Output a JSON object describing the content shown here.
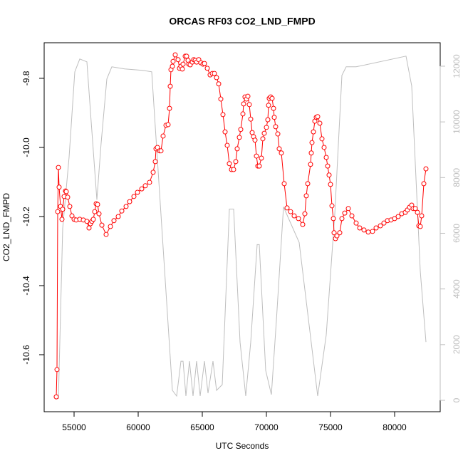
{
  "chart_data": {
    "type": "line",
    "title": "ORCAS RF03 CO2_LND_FMPD",
    "x_label": "UTC Seconds",
    "y_label": "CO2_LND_FMPD",
    "xlim": [
      52667,
      83556
    ],
    "ylim": [
      -10.765,
      -9.697
    ],
    "y2lim": [
      -409,
      12843
    ],
    "xticks": [
      55000,
      60000,
      65000,
      70000,
      75000,
      80000
    ],
    "yticks": [
      -10.6,
      -10.4,
      -10.2,
      {
        "value": -10.0,
        "label": "-10.0"
      },
      -9.8
    ],
    "y2ticks": [
      0,
      2000,
      4000,
      6000,
      8000,
      10000,
      12000
    ],
    "y2_color": "#bebebe",
    "series": [
      {
        "color": "#ff0000",
        "markers": true,
        "x": [
          53611,
          53667,
          53722,
          53778,
          53833,
          53944,
          54055,
          54111,
          54222,
          54333,
          54389,
          54500,
          54667,
          54833,
          55000,
          55167,
          55444,
          55722,
          56000,
          56167,
          56278,
          56389,
          56500,
          56611,
          56722,
          56833,
          56944,
          57167,
          57500,
          57833,
          58111,
          58444,
          58722,
          59056,
          59333,
          59667,
          59944,
          60278,
          60556,
          60889,
          61167,
          61333,
          61389,
          61500,
          61667,
          61778,
          61944,
          62167,
          62333,
          62444,
          62500,
          62556,
          62667,
          62722,
          62889,
          63111,
          63222,
          63333,
          63444,
          63500,
          63667,
          63778,
          63889,
          63944,
          64056,
          64222,
          64333,
          64444,
          64556,
          64722,
          64889,
          65056,
          65167,
          65389,
          65611,
          65778,
          65944,
          66111,
          66278,
          66444,
          66611,
          66778,
          66944,
          67111,
          67278,
          67444,
          67611,
          67722,
          67889,
          68000,
          68167,
          68222,
          68333,
          68444,
          68556,
          68667,
          68778,
          68889,
          69000,
          69111,
          69222,
          69333,
          69444,
          69611,
          69722,
          69833,
          70000,
          70111,
          70167,
          70222,
          70333,
          70444,
          70556,
          70611,
          70722,
          70889,
          71000,
          71167,
          71389,
          71611,
          71889,
          72167,
          72500,
          72833,
          73000,
          73111,
          73222,
          73444,
          73500,
          73556,
          73667,
          73778,
          73889,
          74000,
          74167,
          74333,
          74500,
          74667,
          74778,
          74889,
          75000,
          75111,
          75222,
          75278,
          75389,
          75500,
          75722,
          75889,
          76111,
          76389,
          76667,
          77000,
          77278,
          77611,
          77944,
          78278,
          78556,
          78889,
          79167,
          79444,
          79722,
          80000,
          80278,
          80556,
          80833,
          81000,
          81167,
          81333,
          81444,
          81611,
          81778,
          81889,
          82000,
          82111,
          82278,
          82444
        ],
        "values": [
          -10.722,
          -10.643,
          -10.186,
          -10.058,
          -10.115,
          -10.171,
          -10.208,
          -10.179,
          -10.142,
          -10.126,
          -10.128,
          -10.144,
          -10.171,
          -10.198,
          -10.208,
          -10.21,
          -10.208,
          -10.21,
          -10.214,
          -10.233,
          -10.221,
          -10.214,
          -10.208,
          -10.186,
          -10.163,
          -10.165,
          -10.192,
          -10.225,
          -10.252,
          -10.229,
          -10.212,
          -10.2,
          -10.184,
          -10.171,
          -10.157,
          -10.142,
          -10.13,
          -10.12,
          -10.111,
          -10.101,
          -10.072,
          -10.041,
          -10.004,
          -10.0,
          -10.01,
          -10.01,
          -9.967,
          -9.936,
          -9.934,
          -9.887,
          -9.823,
          -9.775,
          -9.765,
          -9.751,
          -9.732,
          -9.746,
          -9.771,
          -9.765,
          -9.773,
          -9.759,
          -9.736,
          -9.736,
          -9.748,
          -9.759,
          -9.761,
          -9.753,
          -9.746,
          -9.748,
          -9.753,
          -9.746,
          -9.755,
          -9.759,
          -9.757,
          -9.771,
          -9.79,
          -9.786,
          -9.786,
          -9.798,
          -9.816,
          -9.86,
          -9.905,
          -9.955,
          -9.994,
          -10.047,
          -10.064,
          -10.064,
          -10.041,
          -10.004,
          -9.971,
          -9.948,
          -9.903,
          -9.874,
          -9.854,
          -9.86,
          -9.852,
          -9.876,
          -9.918,
          -9.957,
          -9.969,
          -9.979,
          -10.025,
          -10.054,
          -10.054,
          -10.031,
          -9.975,
          -9.959,
          -9.942,
          -9.92,
          -9.878,
          -9.858,
          -9.854,
          -9.858,
          -9.887,
          -9.913,
          -9.94,
          -9.961,
          -10.004,
          -10.016,
          -10.105,
          -10.175,
          -10.186,
          -10.198,
          -10.206,
          -10.223,
          -10.192,
          -10.14,
          -10.105,
          -10.049,
          -10.016,
          -9.986,
          -9.955,
          -9.924,
          -9.913,
          -9.911,
          -9.93,
          -9.975,
          -10.0,
          -10.029,
          -10.054,
          -10.08,
          -10.107,
          -10.169,
          -10.206,
          -10.247,
          -10.264,
          -10.256,
          -10.247,
          -10.206,
          -10.19,
          -10.177,
          -10.198,
          -10.219,
          -10.233,
          -10.239,
          -10.245,
          -10.243,
          -10.233,
          -10.227,
          -10.219,
          -10.212,
          -10.21,
          -10.206,
          -10.2,
          -10.192,
          -10.188,
          -10.181,
          -10.173,
          -10.167,
          -10.177,
          -10.177,
          -10.188,
          -10.227,
          -10.229,
          -10.198,
          -10.105,
          -10.062
        ]
      },
      {
        "color": "#bebebe",
        "axis": "y2",
        "markers": false,
        "x": [
          53778,
          54111,
          54611,
          55056,
          55444,
          56000,
          56333,
          56778,
          57111,
          57556,
          57944,
          58944,
          60333,
          61056,
          62667,
          63000,
          63333,
          63500,
          63722,
          64000,
          64278,
          64556,
          64833,
          65167,
          65444,
          65833,
          66111,
          66556,
          67111,
          67444,
          67944,
          68389,
          68778,
          69278,
          69444,
          69944,
          70389,
          70778,
          71333,
          72556,
          74000,
          74667,
          75333,
          75889,
          76222,
          77000,
          80889,
          81333,
          82000,
          82444
        ],
        "values": [
          51,
          6181,
          8735,
          11800,
          12260,
          12157,
          10012,
          7202,
          9245,
          11544,
          11979,
          11902,
          11851,
          11800,
          358,
          153,
          1405,
          1405,
          153,
          1405,
          153,
          1405,
          153,
          1405,
          255,
          1405,
          358,
          562,
          6870,
          6870,
          2094,
          153,
          2094,
          5593,
          5593,
          1073,
          204,
          2860,
          6947,
          5670,
          153,
          2350,
          6692,
          11672,
          11979,
          11979,
          12362,
          11289,
          4649,
          2094
        ]
      }
    ]
  }
}
